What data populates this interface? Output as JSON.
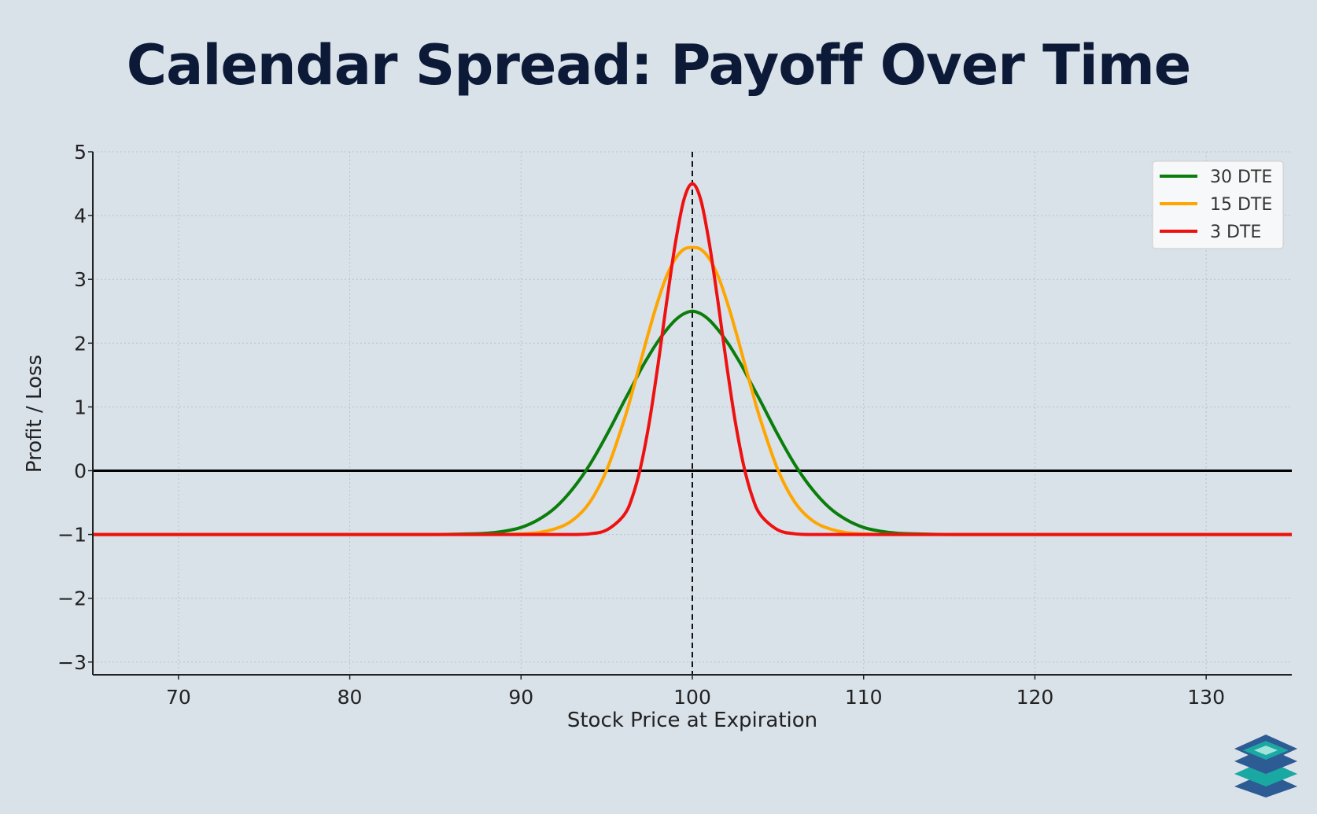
{
  "chart_data": {
    "type": "line",
    "title": "Calendar Spread: Payoff Over Time",
    "xlabel": "Stock Price at Expiration",
    "ylabel": "Profit / Loss",
    "xlim": [
      65,
      135
    ],
    "ylim": [
      -3.2,
      5
    ],
    "xticks": [
      70,
      80,
      90,
      100,
      110,
      120,
      130
    ],
    "xtick_labels": [
      "70",
      "80",
      "90",
      "100",
      "110",
      "120",
      "130"
    ],
    "yticks": [
      5,
      4,
      3,
      2,
      1,
      0,
      -1,
      -2,
      -3
    ],
    "ytick_labels": [
      "5",
      "4",
      "3",
      "2",
      "1",
      "0",
      "−1",
      "−2",
      "−3"
    ],
    "grid": true,
    "legend_position": "top-right",
    "reference_lines": {
      "vertical_x": 100,
      "horizontal_y": 0
    },
    "x": [
      65,
      80,
      85,
      87,
      88,
      89,
      90,
      91,
      92,
      93,
      94,
      95,
      96,
      96.5,
      97,
      97.5,
      98,
      98.5,
      99,
      99.5,
      100,
      100.5,
      101,
      101.5,
      102,
      102.5,
      103,
      103.5,
      104,
      105,
      106,
      107,
      108,
      109,
      110,
      111,
      112,
      113,
      115,
      120,
      135
    ],
    "series": [
      {
        "name": "30 DTE",
        "color": "#0a7d0a",
        "values": [
          -1,
          -1,
          -1,
          -0.99,
          -0.98,
          -0.95,
          -0.89,
          -0.77,
          -0.58,
          -0.29,
          0.09,
          0.56,
          1.08,
          1.33,
          1.59,
          1.82,
          2.03,
          2.21,
          2.36,
          2.46,
          2.5,
          2.46,
          2.36,
          2.21,
          2.03,
          1.82,
          1.59,
          1.33,
          1.08,
          0.56,
          0.09,
          -0.29,
          -0.58,
          -0.77,
          -0.89,
          -0.95,
          -0.98,
          -0.99,
          -1,
          -1,
          -1
        ]
      },
      {
        "name": "15 DTE",
        "color": "#ffa500",
        "values": [
          -1,
          -1,
          -1,
          -1,
          -1,
          -1,
          -0.99,
          -0.97,
          -0.91,
          -0.78,
          -0.5,
          0.01,
          0.78,
          1.24,
          1.73,
          2.22,
          2.67,
          3.05,
          3.32,
          3.47,
          3.5,
          3.47,
          3.32,
          3.05,
          2.67,
          2.22,
          1.73,
          1.24,
          0.78,
          0.01,
          -0.5,
          -0.78,
          -0.91,
          -0.97,
          -0.99,
          -1,
          -1,
          -1,
          -1,
          -1,
          -1
        ]
      },
      {
        "name": "3 DTE",
        "color": "#ee1111",
        "values": [
          -1,
          -1,
          -1,
          -1,
          -1,
          -1,
          -1,
          -1,
          -1,
          -1,
          -0.99,
          -0.93,
          -0.7,
          -0.41,
          0.08,
          0.78,
          1.67,
          2.64,
          3.55,
          4.24,
          4.5,
          4.24,
          3.55,
          2.64,
          1.67,
          0.78,
          0.08,
          -0.41,
          -0.7,
          -0.93,
          -0.99,
          -1,
          -1,
          -1,
          -1,
          -1,
          -1,
          -1,
          -1,
          -1,
          -1
        ]
      }
    ]
  },
  "logo": {
    "icon": "layered-diamonds-logo",
    "colors": [
      "#2d5b94",
      "#1aa8a2",
      "#7ad6cf"
    ]
  }
}
